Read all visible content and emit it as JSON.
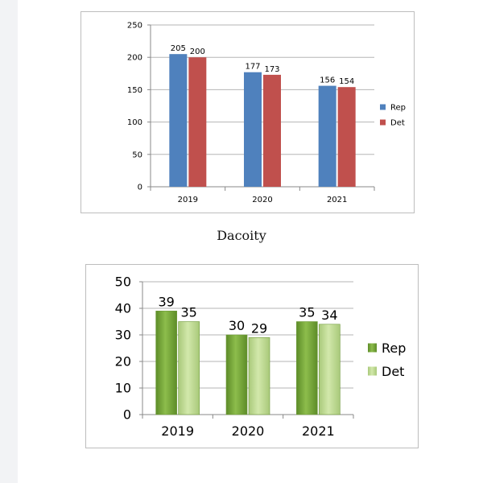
{
  "caption": "Dacoity",
  "chart_data": [
    {
      "type": "bar",
      "title": "",
      "categories": [
        "2019",
        "2020",
        "2021"
      ],
      "series": [
        {
          "name": "Rep",
          "values": [
            205,
            177,
            156
          ],
          "color": "#4f81bd"
        },
        {
          "name": "Det",
          "values": [
            200,
            173,
            154
          ],
          "color": "#c0504d"
        }
      ],
      "ylim": [
        0,
        250
      ],
      "yticks": [
        "0",
        "50",
        "100",
        "150",
        "200",
        "250"
      ],
      "grid": true,
      "legend": "right",
      "xlabel": "",
      "ylabel": ""
    },
    {
      "type": "bar",
      "title": "",
      "categories": [
        "2019",
        "2020",
        "2021"
      ],
      "series": [
        {
          "name": "Rep",
          "values": [
            39,
            30,
            35
          ],
          "color": "#77a83a"
        },
        {
          "name": "Det",
          "values": [
            35,
            29,
            34
          ],
          "color": "#c0dc90"
        }
      ],
      "ylim": [
        0,
        50
      ],
      "yticks": [
        "0",
        "10",
        "20",
        "30",
        "40",
        "50"
      ],
      "grid": true,
      "legend": "right",
      "xlabel": "",
      "ylabel": ""
    }
  ]
}
